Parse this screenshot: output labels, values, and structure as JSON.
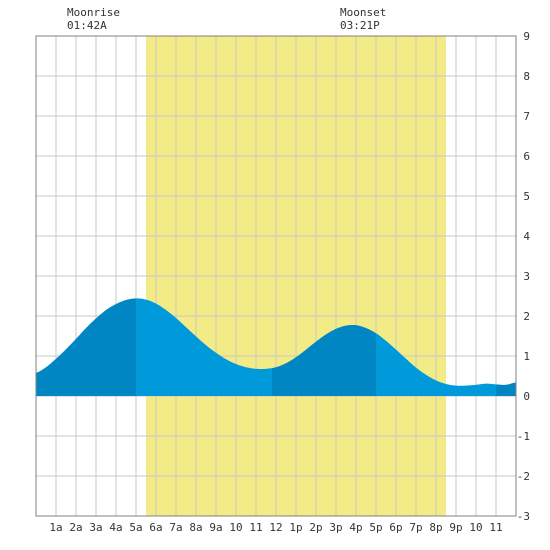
{
  "moon": {
    "moonrise_label": "Moonrise",
    "moonrise_time": "01:42A",
    "moonset_label": "Moonset",
    "moonset_time": "03:21P"
  },
  "chart_data": {
    "type": "area",
    "title": "",
    "xlabel": "",
    "ylabel": "",
    "xlim": [
      0,
      24
    ],
    "ylim": [
      -3,
      9
    ],
    "grid": true,
    "x_ticks": [
      {
        "x": 1,
        "label": "1a"
      },
      {
        "x": 2,
        "label": "2a"
      },
      {
        "x": 3,
        "label": "3a"
      },
      {
        "x": 4,
        "label": "4a"
      },
      {
        "x": 5,
        "label": "5a"
      },
      {
        "x": 6,
        "label": "6a"
      },
      {
        "x": 7,
        "label": "7a"
      },
      {
        "x": 8,
        "label": "8a"
      },
      {
        "x": 9,
        "label": "9a"
      },
      {
        "x": 10,
        "label": "10"
      },
      {
        "x": 11,
        "label": "11"
      },
      {
        "x": 12,
        "label": "12"
      },
      {
        "x": 13,
        "label": "1p"
      },
      {
        "x": 14,
        "label": "2p"
      },
      {
        "x": 15,
        "label": "3p"
      },
      {
        "x": 16,
        "label": "4p"
      },
      {
        "x": 17,
        "label": "5p"
      },
      {
        "x": 18,
        "label": "6p"
      },
      {
        "x": 19,
        "label": "7p"
      },
      {
        "x": 20,
        "label": "8p"
      },
      {
        "x": 21,
        "label": "9p"
      },
      {
        "x": 22,
        "label": "10"
      },
      {
        "x": 23,
        "label": "11"
      }
    ],
    "y_ticks": [
      -3,
      -2,
      -1,
      0,
      1,
      2,
      3,
      4,
      5,
      6,
      7,
      8,
      9
    ],
    "daylight": {
      "start": 5.5,
      "end": 20.5
    },
    "moonrise": 1.7,
    "moonset": 15.35,
    "series": [
      {
        "x": [
          0,
          0.5,
          1,
          1.5,
          2,
          2.5,
          3,
          3.5,
          4,
          4.5,
          5,
          5.5,
          6,
          6.5,
          7,
          7.5,
          8,
          8.5,
          9,
          9.5,
          10,
          10.5,
          11,
          11.5,
          12,
          12.5,
          13,
          13.5,
          14,
          14.5,
          15,
          15.5,
          16,
          16.5,
          17,
          17.5,
          18,
          18.5,
          19,
          19.5,
          20,
          20.5,
          21,
          21.5,
          22,
          22.5,
          23,
          23.5,
          24
        ],
        "values": [
          0.58,
          0.72,
          0.93,
          1.17,
          1.43,
          1.7,
          1.94,
          2.15,
          2.3,
          2.4,
          2.44,
          2.41,
          2.31,
          2.15,
          1.95,
          1.72,
          1.49,
          1.27,
          1.08,
          0.92,
          0.8,
          0.72,
          0.68,
          0.68,
          0.72,
          0.82,
          0.97,
          1.16,
          1.36,
          1.54,
          1.68,
          1.76,
          1.77,
          1.7,
          1.57,
          1.38,
          1.16,
          0.93,
          0.71,
          0.53,
          0.39,
          0.3,
          0.26,
          0.26,
          0.28,
          0.31,
          0.29,
          0.28,
          0.34
        ]
      }
    ],
    "tide_phases": [
      {
        "start": 0,
        "end": 5,
        "type": "rising"
      },
      {
        "start": 5,
        "end": 11.8,
        "type": "falling"
      },
      {
        "start": 11.8,
        "end": 17,
        "type": "rising"
      },
      {
        "start": 17,
        "end": 23,
        "type": "falling"
      },
      {
        "start": 23,
        "end": 24,
        "type": "rising"
      }
    ],
    "colors": {
      "daylight": "#f3eb86",
      "rising": "#0087c3",
      "falling": "#0099da",
      "grid": "#c8c8c8",
      "border": "#808080"
    }
  }
}
